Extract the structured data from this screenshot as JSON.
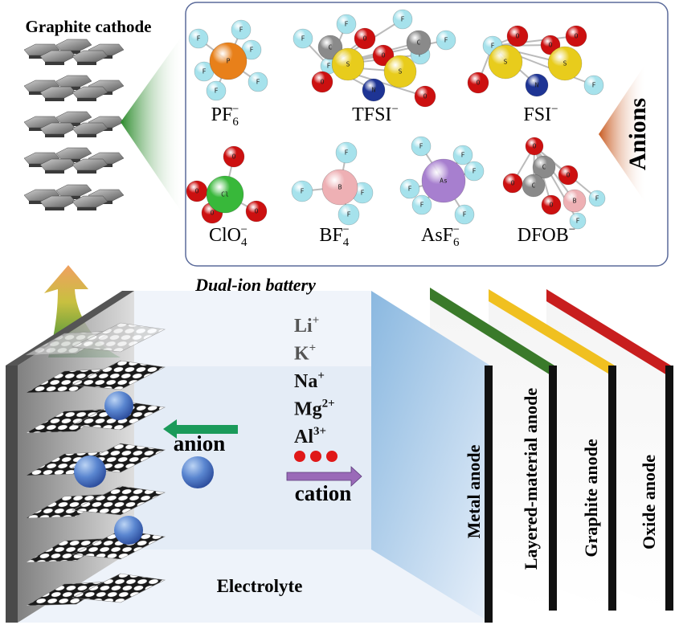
{
  "cathode": {
    "title": "Graphite cathode"
  },
  "anions_panel": {
    "label": "Anions",
    "molecules": [
      {
        "id": "pf6",
        "formula": {
          "base": "PF",
          "sub": "6",
          "sup": "−"
        },
        "atoms": [
          "P",
          "F",
          "F",
          "F",
          "F",
          "F",
          "F"
        ]
      },
      {
        "id": "tfsi",
        "formula": {
          "base": "TFSI",
          "sub": "",
          "sup": "−"
        },
        "atoms": [
          "F",
          "F",
          "F",
          "C",
          "S",
          "O",
          "O",
          "O",
          "S",
          "O",
          "N",
          "F",
          "F",
          "C",
          "F"
        ]
      },
      {
        "id": "fsi",
        "formula": {
          "base": "FSI",
          "sub": "",
          "sup": "−"
        },
        "atoms": [
          "F",
          "O",
          "S",
          "O",
          "O",
          "O",
          "S",
          "N",
          "F"
        ]
      },
      {
        "id": "clo4",
        "formula": {
          "base": "ClO",
          "sub": "4",
          "sup": "−"
        },
        "atoms": [
          "Cl",
          "O",
          "O",
          "O",
          "O"
        ]
      },
      {
        "id": "bf4",
        "formula": {
          "base": "BF",
          "sub": "4",
          "sup": "−"
        },
        "atoms": [
          "B",
          "F",
          "F",
          "F",
          "F"
        ]
      },
      {
        "id": "asf6",
        "formula": {
          "base": "AsF",
          "sub": "6",
          "sup": "−"
        },
        "atoms": [
          "As",
          "F",
          "F",
          "F",
          "F",
          "F",
          "F"
        ]
      },
      {
        "id": "dfob",
        "formula": {
          "base": "DFOB",
          "sub": "",
          "sup": "−"
        },
        "atoms": [
          "O",
          "C",
          "O",
          "C",
          "O",
          "O",
          "B",
          "F",
          "F"
        ]
      }
    ]
  },
  "battery": {
    "title": "Dual-ion battery",
    "cations": [
      {
        "base": "Li",
        "sup": "+",
        "color": "#555555"
      },
      {
        "base": "K",
        "sup": "+",
        "color": "#555555"
      },
      {
        "base": "Na",
        "sup": "+",
        "color": "#111111"
      },
      {
        "base": "Mg",
        "sup": "2+",
        "color": "#111111"
      },
      {
        "base": "Al",
        "sup": "3+",
        "color": "#111111"
      }
    ],
    "anion_label": "anion",
    "cation_label": "cation",
    "electrolyte_label": "Electrolyte"
  },
  "anodes": [
    {
      "label": "Metal anode",
      "color": "#a8c8e8"
    },
    {
      "label": "Layered-material anode",
      "color": "#3a7a2a"
    },
    {
      "label": "Graphite anode",
      "color": "#f0c020"
    },
    {
      "label": "Oxide anode",
      "color": "#c81e1e"
    }
  ],
  "atom_colors": {
    "P": "#e8801a",
    "F": "#a6e2ec",
    "C": "#8a8a8a",
    "S": "#e8cc1c",
    "O": "#cc1010",
    "N": "#1e3494",
    "Cl": "#38b83a",
    "B": "#eeb0b4",
    "As": "#a77fcf"
  },
  "accents": {
    "anion_arrow": "#1a9a5a",
    "cation_arrow": "#9a6ab8",
    "dots": "#e01818",
    "panel_border": "#5a6a9a"
  }
}
